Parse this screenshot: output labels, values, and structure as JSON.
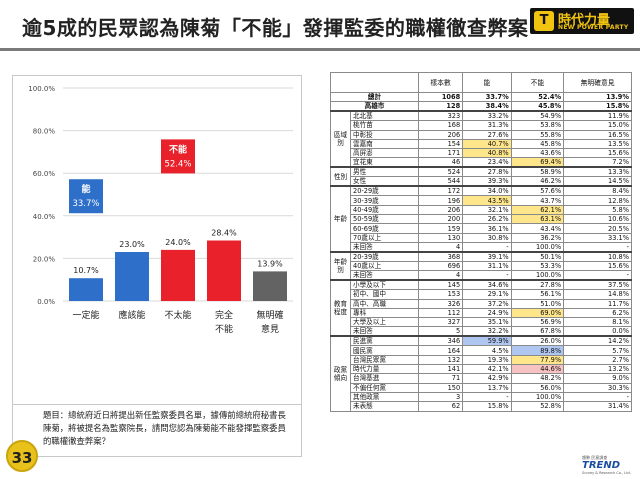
{
  "header": {
    "title": "逾5成的民眾認為陳菊「不能」發揮監委的職權徹查弊案",
    "logo_mark": "T",
    "logo_name": "時代力量",
    "logo_sub": "NEW POWER PARTY"
  },
  "page_number": "33",
  "question": "題目：總統府近日將提出新任監察委員名單，據傳前總統府秘書長陳菊，將被提名為監察院長，請問您認為陳菊能不能發揮監察委員的職權徹查弊案？",
  "footer_logo": {
    "top": "趨勢 民意調查",
    "main": "TREND",
    "sub": "Survey & Research Co., Ltd."
  },
  "colors": {
    "blue": "#2e6fc9",
    "red": "#e8212a",
    "gray": "#636363",
    "highlight_yellow": "#ffe68a",
    "highlight_blue": "#aec6f0",
    "highlight_pink": "#f6c2c2"
  },
  "chart_data": {
    "type": "bar",
    "categories": [
      "一定能",
      "應該能",
      "不太能",
      "完全不能",
      "無明確意見"
    ],
    "category_lines": [
      [
        "一定能"
      ],
      [
        "應該能"
      ],
      [
        "不太能"
      ],
      [
        "完全",
        "不能"
      ],
      [
        "無明確",
        "意見"
      ]
    ],
    "values": [
      10.7,
      23.0,
      24.0,
      28.4,
      13.9
    ],
    "value_labels": [
      "10.7%",
      "23.0%",
      "24.0%",
      "28.4%",
      "13.9%"
    ],
    "bar_colors": [
      "#2e6fc9",
      "#2e6fc9",
      "#e8212a",
      "#e8212a",
      "#636363"
    ],
    "ylim": [
      0,
      100
    ],
    "yticks": [
      "0.0%",
      "20.0%",
      "40.0%",
      "60.0%",
      "80.0%",
      "100.0%"
    ],
    "stacks": [
      {
        "label": "能",
        "value": "33.7%",
        "color": "#2e6fc9"
      },
      {
        "label": "不能",
        "value": "52.4%",
        "color": "#e8212a"
      }
    ],
    "grid": true
  },
  "table": {
    "columns": [
      "",
      "",
      "樣本數",
      "能",
      "不能",
      "無明確意見"
    ],
    "rows": [
      {
        "group": "",
        "label": "總計",
        "n": "1068",
        "can": "33.7%",
        "cannot": "52.4%",
        "none": "13.9%",
        "total": true
      },
      {
        "group": "",
        "label": "高雄市",
        "n": "128",
        "can": "38.4%",
        "cannot": "45.8%",
        "none": "15.8%",
        "total": true
      },
      {
        "group": "區域別",
        "label": "北北基",
        "n": "323",
        "can": "33.2%",
        "cannot": "54.9%",
        "none": "11.9%",
        "thick": true
      },
      {
        "group": "",
        "label": "桃竹苗",
        "n": "168",
        "can": "31.3%",
        "cannot": "53.8%",
        "none": "15.0%"
      },
      {
        "group": "",
        "label": "中彰投",
        "n": "206",
        "can": "27.6%",
        "cannot": "55.8%",
        "none": "16.5%"
      },
      {
        "group": "",
        "label": "雲嘉南",
        "n": "154",
        "can": "40.7%",
        "cannot": "45.8%",
        "none": "13.5%",
        "hl_can": "y"
      },
      {
        "group": "",
        "label": "高屏澎",
        "n": "171",
        "can": "40.8%",
        "cannot": "43.6%",
        "none": "15.6%",
        "hl_can": "y"
      },
      {
        "group": "",
        "label": "宜花東",
        "n": "46",
        "can": "23.4%",
        "cannot": "69.4%",
        "none": "7.2%",
        "hl_cannot": "y"
      },
      {
        "group": "性別",
        "label": "男性",
        "n": "524",
        "can": "27.8%",
        "cannot": "58.9%",
        "none": "13.3%",
        "thick": true
      },
      {
        "group": "",
        "label": "女性",
        "n": "544",
        "can": "39.3%",
        "cannot": "46.2%",
        "none": "14.5%"
      },
      {
        "group": "年齡",
        "label": "20-29歲",
        "n": "172",
        "can": "34.0%",
        "cannot": "57.6%",
        "none": "8.4%",
        "thick": true
      },
      {
        "group": "",
        "label": "30-39歲",
        "n": "196",
        "can": "43.5%",
        "cannot": "43.7%",
        "none": "12.8%",
        "hl_can": "y"
      },
      {
        "group": "",
        "label": "40-49歲",
        "n": "206",
        "can": "32.1%",
        "cannot": "62.1%",
        "none": "5.8%",
        "hl_cannot": "y"
      },
      {
        "group": "",
        "label": "50-59歲",
        "n": "200",
        "can": "26.2%",
        "cannot": "63.1%",
        "none": "10.6%",
        "hl_cannot": "y"
      },
      {
        "group": "",
        "label": "60-69歲",
        "n": "159",
        "can": "36.1%",
        "cannot": "43.4%",
        "none": "20.5%"
      },
      {
        "group": "",
        "label": "70歲以上",
        "n": "130",
        "can": "30.8%",
        "cannot": "36.2%",
        "none": "33.1%"
      },
      {
        "group": "",
        "label": "未回答",
        "n": "4",
        "can": "-",
        "cannot": "100.0%",
        "none": "-"
      },
      {
        "group": "年齡別",
        "label": "20-39歲",
        "n": "368",
        "can": "39.1%",
        "cannot": "50.1%",
        "none": "10.8%",
        "thick": true
      },
      {
        "group": "",
        "label": "40歲以上",
        "n": "696",
        "can": "31.1%",
        "cannot": "53.3%",
        "none": "15.6%"
      },
      {
        "group": "",
        "label": "未回答",
        "n": "4",
        "can": "-",
        "cannot": "100.0%",
        "none": "-"
      },
      {
        "group": "教育程度",
        "label": "小學及以下",
        "n": "145",
        "can": "34.6%",
        "cannot": "27.8%",
        "none": "37.5%",
        "thick": true
      },
      {
        "group": "",
        "label": "初中、國中",
        "n": "153",
        "can": "29.1%",
        "cannot": "56.1%",
        "none": "14.8%"
      },
      {
        "group": "",
        "label": "高中、高職",
        "n": "326",
        "can": "37.2%",
        "cannot": "51.0%",
        "none": "11.7%"
      },
      {
        "group": "",
        "label": "專科",
        "n": "112",
        "can": "24.9%",
        "cannot": "69.0%",
        "none": "6.2%",
        "hl_cannot": "y"
      },
      {
        "group": "",
        "label": "大學及以上",
        "n": "327",
        "can": "35.1%",
        "cannot": "56.9%",
        "none": "8.1%"
      },
      {
        "group": "",
        "label": "未回答",
        "n": "5",
        "can": "32.2%",
        "cannot": "67.8%",
        "none": "0.0%"
      },
      {
        "group": "政黨傾向",
        "label": "民進黨",
        "n": "346",
        "can": "59.9%",
        "cannot": "26.0%",
        "none": "14.2%",
        "hl_can": "b",
        "thick": true
      },
      {
        "group": "",
        "label": "國民黨",
        "n": "164",
        "can": "4.5%",
        "cannot": "89.8%",
        "none": "5.7%",
        "hl_cannot": "b"
      },
      {
        "group": "",
        "label": "台灣民眾黨",
        "n": "132",
        "can": "19.3%",
        "cannot": "77.9%",
        "none": "2.7%",
        "hl_cannot": "y"
      },
      {
        "group": "",
        "label": "時代力量",
        "n": "141",
        "can": "42.1%",
        "cannot": "44.6%",
        "none": "13.2%",
        "hl_cannot": "p"
      },
      {
        "group": "",
        "label": "台灣基進",
        "n": "71",
        "can": "42.9%",
        "cannot": "48.2%",
        "none": "9.0%"
      },
      {
        "group": "",
        "label": "不偏任何黨",
        "n": "150",
        "can": "13.7%",
        "cannot": "56.0%",
        "none": "30.3%"
      },
      {
        "group": "",
        "label": "其他政黨",
        "n": "3",
        "can": "-",
        "cannot": "100.0%",
        "none": "-"
      },
      {
        "group": "",
        "label": "未表態",
        "n": "62",
        "can": "15.8%",
        "cannot": "52.8%",
        "none": "31.4%"
      }
    ]
  }
}
